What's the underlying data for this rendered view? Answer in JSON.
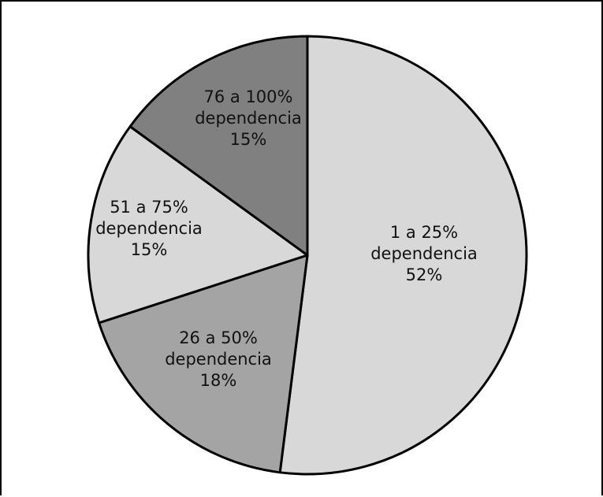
{
  "chart_data": {
    "type": "pie",
    "slices": [
      {
        "label_line1": "1 a 25%",
        "label_line2": "dependencia",
        "label_line3": "52%",
        "value": 52,
        "color": "#d8d8d8"
      },
      {
        "label_line1": "26 a 50%",
        "label_line2": "dependencia",
        "label_line3": "18%",
        "value": 18,
        "color": "#a4a4a4"
      },
      {
        "label_line1": "51 a 75%",
        "label_line2": "dependencia",
        "label_line3": "15%",
        "value": 15,
        "color": "#d8d8d8"
      },
      {
        "label_line1": "76 a 100%",
        "label_line2": "dependencia",
        "label_line3": "15%",
        "value": 15,
        "color": "#808080"
      }
    ],
    "start_angle_deg": 0,
    "direction": "clockwise",
    "stroke_color": "#000000",
    "title": "",
    "legend": "none"
  }
}
